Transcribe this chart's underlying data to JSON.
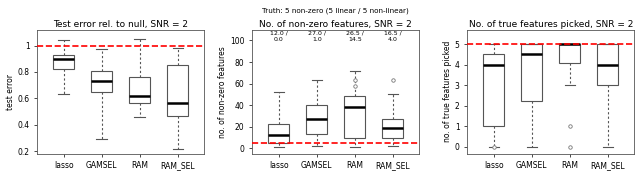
{
  "panel1": {
    "title": "Test error rel. to null, SNR = 2",
    "ylabel": "test error",
    "categories": [
      "lasso",
      "GAMSEL",
      "RAM",
      "RAM_SEL"
    ],
    "hline": 1.0,
    "hline_color": "red",
    "ylim": [
      0.18,
      1.12
    ],
    "yticks": [
      0.2,
      0.4,
      0.6,
      0.8,
      1.0
    ],
    "boxes": [
      {
        "med": 0.895,
        "q1": 0.825,
        "q3": 0.925,
        "whislo": 0.635,
        "whishi": 1.04,
        "fliers": []
      },
      {
        "med": 0.735,
        "q1": 0.645,
        "q3": 0.81,
        "whislo": 0.295,
        "whishi": 0.97,
        "fliers": []
      },
      {
        "med": 0.615,
        "q1": 0.565,
        "q3": 0.765,
        "whislo": 0.46,
        "whishi": 1.05,
        "fliers": []
      },
      {
        "med": 0.565,
        "q1": 0.465,
        "q3": 0.85,
        "whislo": 0.22,
        "whishi": 0.98,
        "fliers": []
      }
    ]
  },
  "panel2": {
    "title": "No. of non-zero features, SNR = 2",
    "subtitle": "Truth: 5 non-zero (5 linear / 5 non-linear)",
    "ylabel": "no. of non-zero features",
    "categories": [
      "lasso",
      "GAMSEL",
      "RAM",
      "RAM_SEL"
    ],
    "hline": 5,
    "hline_color": "red",
    "ylim": [
      -5,
      110
    ],
    "yticks": [
      0,
      20,
      40,
      60,
      80,
      100
    ],
    "annotations": [
      "12.0 /\n0.0",
      "27.0 /\n1.0",
      "26.5 /\n14.5",
      "16.5 /\n4.0"
    ],
    "boxes": [
      {
        "med": 12.0,
        "q1": 5.0,
        "q3": 22.5,
        "whislo": 1.0,
        "whishi": 52.0,
        "fliers": []
      },
      {
        "med": 27.0,
        "q1": 13.0,
        "q3": 40.0,
        "whislo": 2.0,
        "whishi": 63.0,
        "fliers": []
      },
      {
        "med": 38.0,
        "q1": 10.0,
        "q3": 49.0,
        "whislo": 1.0,
        "whishi": 72.0,
        "fliers": [
          58.0,
          63.0
        ]
      },
      {
        "med": 19.0,
        "q1": 10.0,
        "q3": 27.0,
        "whislo": 2.0,
        "whishi": 50.0,
        "fliers": [
          63.0
        ]
      }
    ]
  },
  "panel3": {
    "title": "No. of true features picked, SNR = 2",
    "ylabel": "no. of true features picked",
    "categories": [
      "lasso",
      "GAMSEL",
      "RAM",
      "RAM_SEL"
    ],
    "hline": 5,
    "hline_color": "red",
    "ylim": [
      -0.35,
      5.7
    ],
    "yticks": [
      0,
      1,
      2,
      3,
      4,
      5
    ],
    "boxes": [
      {
        "med": 4.0,
        "q1": 1.0,
        "q3": 4.5,
        "whislo": 0.0,
        "whishi": 5.0,
        "fliers": [
          0.0
        ]
      },
      {
        "med": 4.5,
        "q1": 2.2,
        "q3": 5.0,
        "whislo": 0.0,
        "whishi": 5.0,
        "fliers": []
      },
      {
        "med": 5.0,
        "q1": 4.1,
        "q3": 5.0,
        "whislo": 3.0,
        "whishi": 5.0,
        "fliers": [
          0.0,
          1.0
        ]
      },
      {
        "med": 4.0,
        "q1": 3.0,
        "q3": 5.0,
        "whislo": 0.0,
        "whishi": 5.0,
        "fliers": []
      }
    ]
  },
  "box_facecolor": "white",
  "box_edgecolor": "#555555",
  "median_color": "black",
  "whisker_color": "#555555",
  "flier_color": "#777777",
  "bg_color": "white",
  "fig_width": 6.4,
  "fig_height": 1.76,
  "dpi": 100
}
